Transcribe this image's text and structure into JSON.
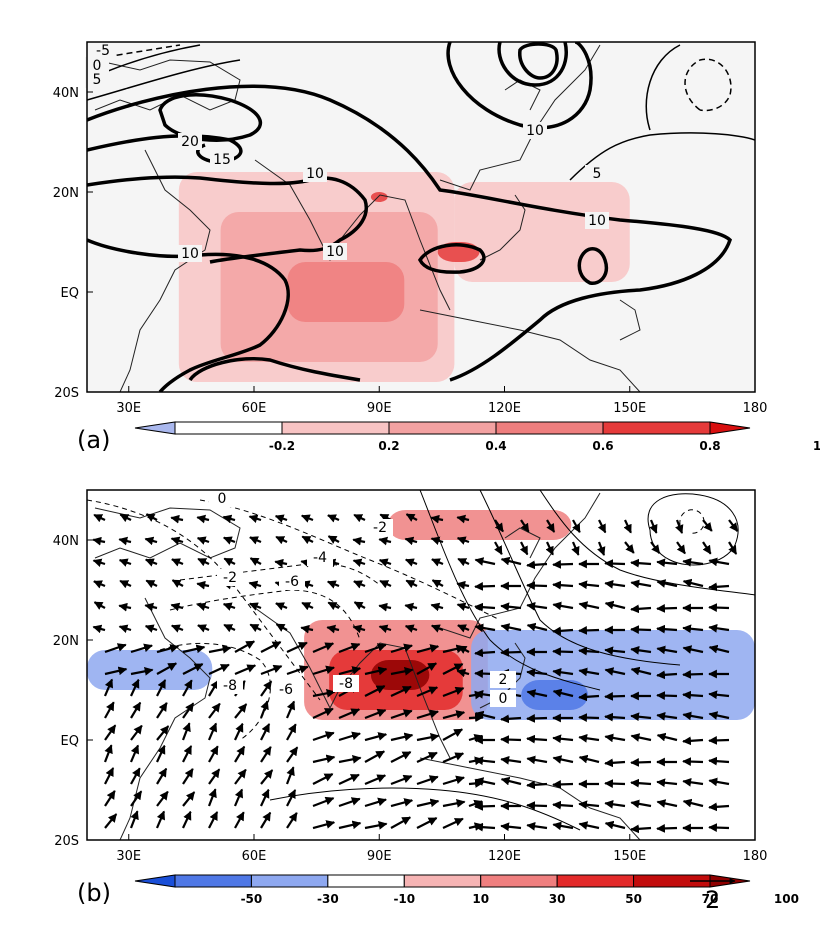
{
  "chart_data": [
    {
      "type": "heatmap",
      "panel_label": "(a)",
      "x_ticks": [
        {
          "value": 30,
          "label": "30E"
        },
        {
          "value": 60,
          "label": "60E"
        },
        {
          "value": 90,
          "label": "90E"
        },
        {
          "value": 120,
          "label": "120E"
        },
        {
          "value": 150,
          "label": "150E"
        },
        {
          "value": 180,
          "label": "180"
        }
      ],
      "y_ticks": [
        {
          "value": 40,
          "label": "40N"
        },
        {
          "value": 20,
          "label": "20N"
        },
        {
          "value": 0,
          "label": "EQ"
        },
        {
          "value": -20,
          "label": "20S"
        }
      ],
      "xlim": [
        20,
        180
      ],
      "ylim": [
        -20,
        50
      ],
      "colorbar": {
        "labels": [
          "-0.2",
          "0.2",
          "0.4",
          "0.6",
          "0.8",
          "1"
        ],
        "colors": [
          "#aab8ee",
          "#ffffff",
          "#f8c4c4",
          "#f3a2a2",
          "#ee7e7e",
          "#e53a3a",
          "#d80f0f"
        ]
      },
      "contour_labels": [
        "-5",
        "0",
        "5",
        "20",
        "15",
        "10",
        "10",
        "10",
        "10",
        "5",
        "10"
      ],
      "shaded_regions": [
        {
          "level": 0.2,
          "lon": [
            42,
            108
          ],
          "lat": [
            -18,
            24
          ]
        },
        {
          "level": 0.4,
          "lon": [
            52,
            104
          ],
          "lat": [
            -14,
            16
          ]
        },
        {
          "level": 0.6,
          "lon": [
            68,
            96
          ],
          "lat": [
            -6,
            6
          ]
        },
        {
          "level": 0.2,
          "lon": [
            108,
            150
          ],
          "lat": [
            2,
            22
          ]
        },
        {
          "level": 0.8,
          "lon": [
            104,
            114
          ],
          "lat": [
            6,
            10
          ]
        },
        {
          "level": 0.8,
          "lon": [
            88,
            92
          ],
          "lat": [
            18,
            20
          ]
        }
      ]
    },
    {
      "type": "heatmap",
      "panel_label": "(b)",
      "x_ticks": [
        {
          "value": 30,
          "label": "30E"
        },
        {
          "value": 60,
          "label": "60E"
        },
        {
          "value": 90,
          "label": "90E"
        },
        {
          "value": 120,
          "label": "120E"
        },
        {
          "value": 150,
          "label": "150E"
        },
        {
          "value": 180,
          "label": "180"
        }
      ],
      "y_ticks": [
        {
          "value": 40,
          "label": "40N"
        },
        {
          "value": 20,
          "label": "20N"
        },
        {
          "value": 0,
          "label": "EQ"
        },
        {
          "value": -20,
          "label": "20S"
        }
      ],
      "xlim": [
        20,
        180
      ],
      "ylim": [
        -20,
        50
      ],
      "colorbar": {
        "labels": [
          "-50",
          "-30",
          "-10",
          "10",
          "30",
          "50",
          "70",
          "100"
        ],
        "colors": [
          "#1a4fd8",
          "#4f78e6",
          "#8ea8f0",
          "#ffffff",
          "#f6b4b4",
          "#ef7f7f",
          "#e32a2a",
          "#c20c0c",
          "#8f0000"
        ]
      },
      "contour_labels": [
        "0",
        "-2",
        "-4",
        "-2",
        "-6",
        "-8",
        "-6",
        "-8",
        "2",
        "0"
      ],
      "vector_reference": "2",
      "shaded_regions": [
        {
          "level": 30,
          "lon": [
            72,
            116
          ],
          "lat": [
            4,
            24
          ]
        },
        {
          "level": 50,
          "lon": [
            78,
            110
          ],
          "lat": [
            6,
            18
          ]
        },
        {
          "level": 100,
          "lon": [
            88,
            102
          ],
          "lat": [
            10,
            16
          ]
        },
        {
          "level": -30,
          "lon": [
            112,
            180
          ],
          "lat": [
            4,
            22
          ]
        },
        {
          "level": -50,
          "lon": [
            124,
            140
          ],
          "lat": [
            6,
            12
          ]
        },
        {
          "level": -30,
          "lon": [
            20,
            50
          ],
          "lat": [
            10,
            18
          ]
        },
        {
          "level": 30,
          "lon": [
            92,
            136
          ],
          "lat": [
            40,
            46
          ]
        }
      ]
    }
  ]
}
